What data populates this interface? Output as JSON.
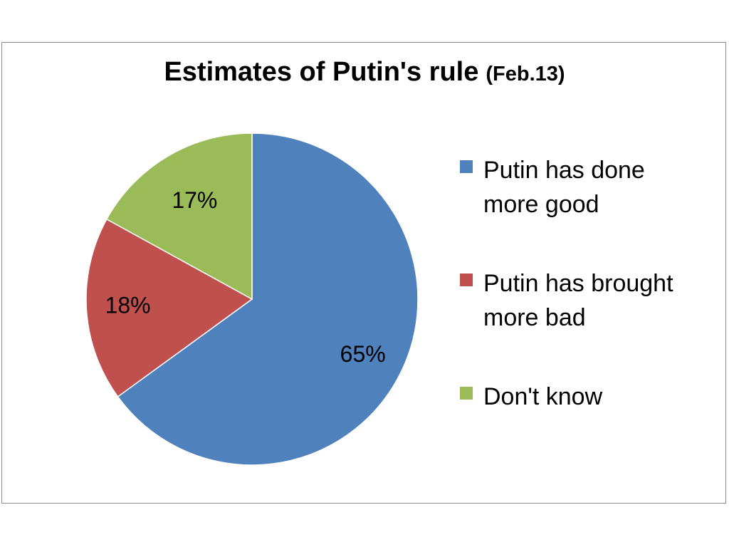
{
  "chart_data": {
    "type": "pie",
    "title": "Estimates of Putin's rule",
    "subtitle": "(Feb.13)",
    "slices": [
      {
        "label": "Putin has done more good",
        "value": 65,
        "value_label": "65%",
        "color": "#4F81BD"
      },
      {
        "label": "Putin has brought more bad",
        "value": 18,
        "value_label": "18%",
        "color": "#C0504D"
      },
      {
        "label": "Don't know",
        "value": 17,
        "value_label": "17%",
        "color": "#9BBB59"
      }
    ],
    "legend_position": "right",
    "start_angle": "12 o'clock",
    "direction": "clockwise"
  },
  "legend": {
    "items": [
      {
        "line1": "Putin has done",
        "line2": "more good"
      },
      {
        "line1": "Putin has brought",
        "line2": "more bad"
      },
      {
        "line1": "Don't know",
        "line2": ""
      }
    ]
  }
}
